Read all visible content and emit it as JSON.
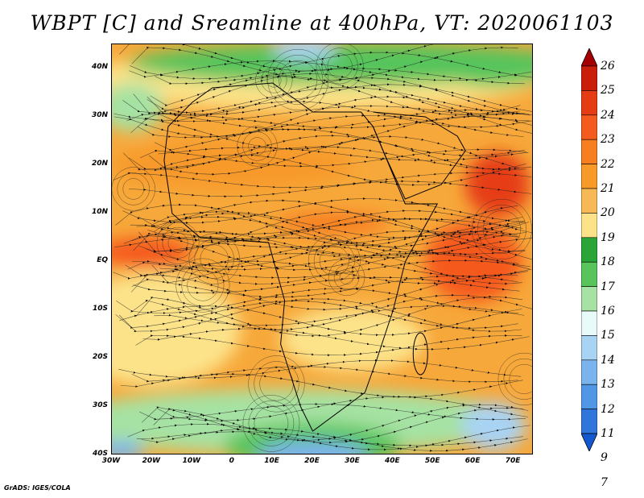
{
  "title": "WBPT [C] and Sreamline at 400hPa, VT: 2020061103",
  "credit": "GrADS: IGES/COLA",
  "axes": {
    "lat_labels": [
      "40N",
      "30N",
      "20N",
      "10N",
      "EQ",
      "10S",
      "20S",
      "30S",
      "40S"
    ],
    "lat_values": [
      40,
      30,
      20,
      10,
      0,
      -10,
      -20,
      -30,
      -40
    ],
    "lon_labels": [
      "30W",
      "20W",
      "10W",
      "0",
      "10E",
      "20E",
      "30E",
      "40E",
      "50E",
      "60E",
      "70E"
    ],
    "lon_values": [
      -30,
      -20,
      -10,
      0,
      10,
      20,
      30,
      40,
      50,
      60,
      70
    ],
    "lon_range": [
      -30,
      75
    ],
    "lat_range": [
      -40,
      45
    ]
  },
  "colorbar": {
    "labels": [
      "26",
      "25",
      "24",
      "23",
      "22",
      "21",
      "20",
      "19",
      "18",
      "17",
      "16",
      "15",
      "14",
      "13",
      "12",
      "11",
      "9",
      "7"
    ],
    "colors": [
      "#a50000",
      "#c81e0a",
      "#e63c14",
      "#f55a1e",
      "#f77f20",
      "#f79a2a",
      "#f7b955",
      "#fce38a",
      "#29a637",
      "#57c45c",
      "#a6e2a3",
      "#e8fbf8",
      "#a9d3f3",
      "#7bb4ec",
      "#5297e6",
      "#3075dc",
      "#1458d0"
    ]
  }
}
